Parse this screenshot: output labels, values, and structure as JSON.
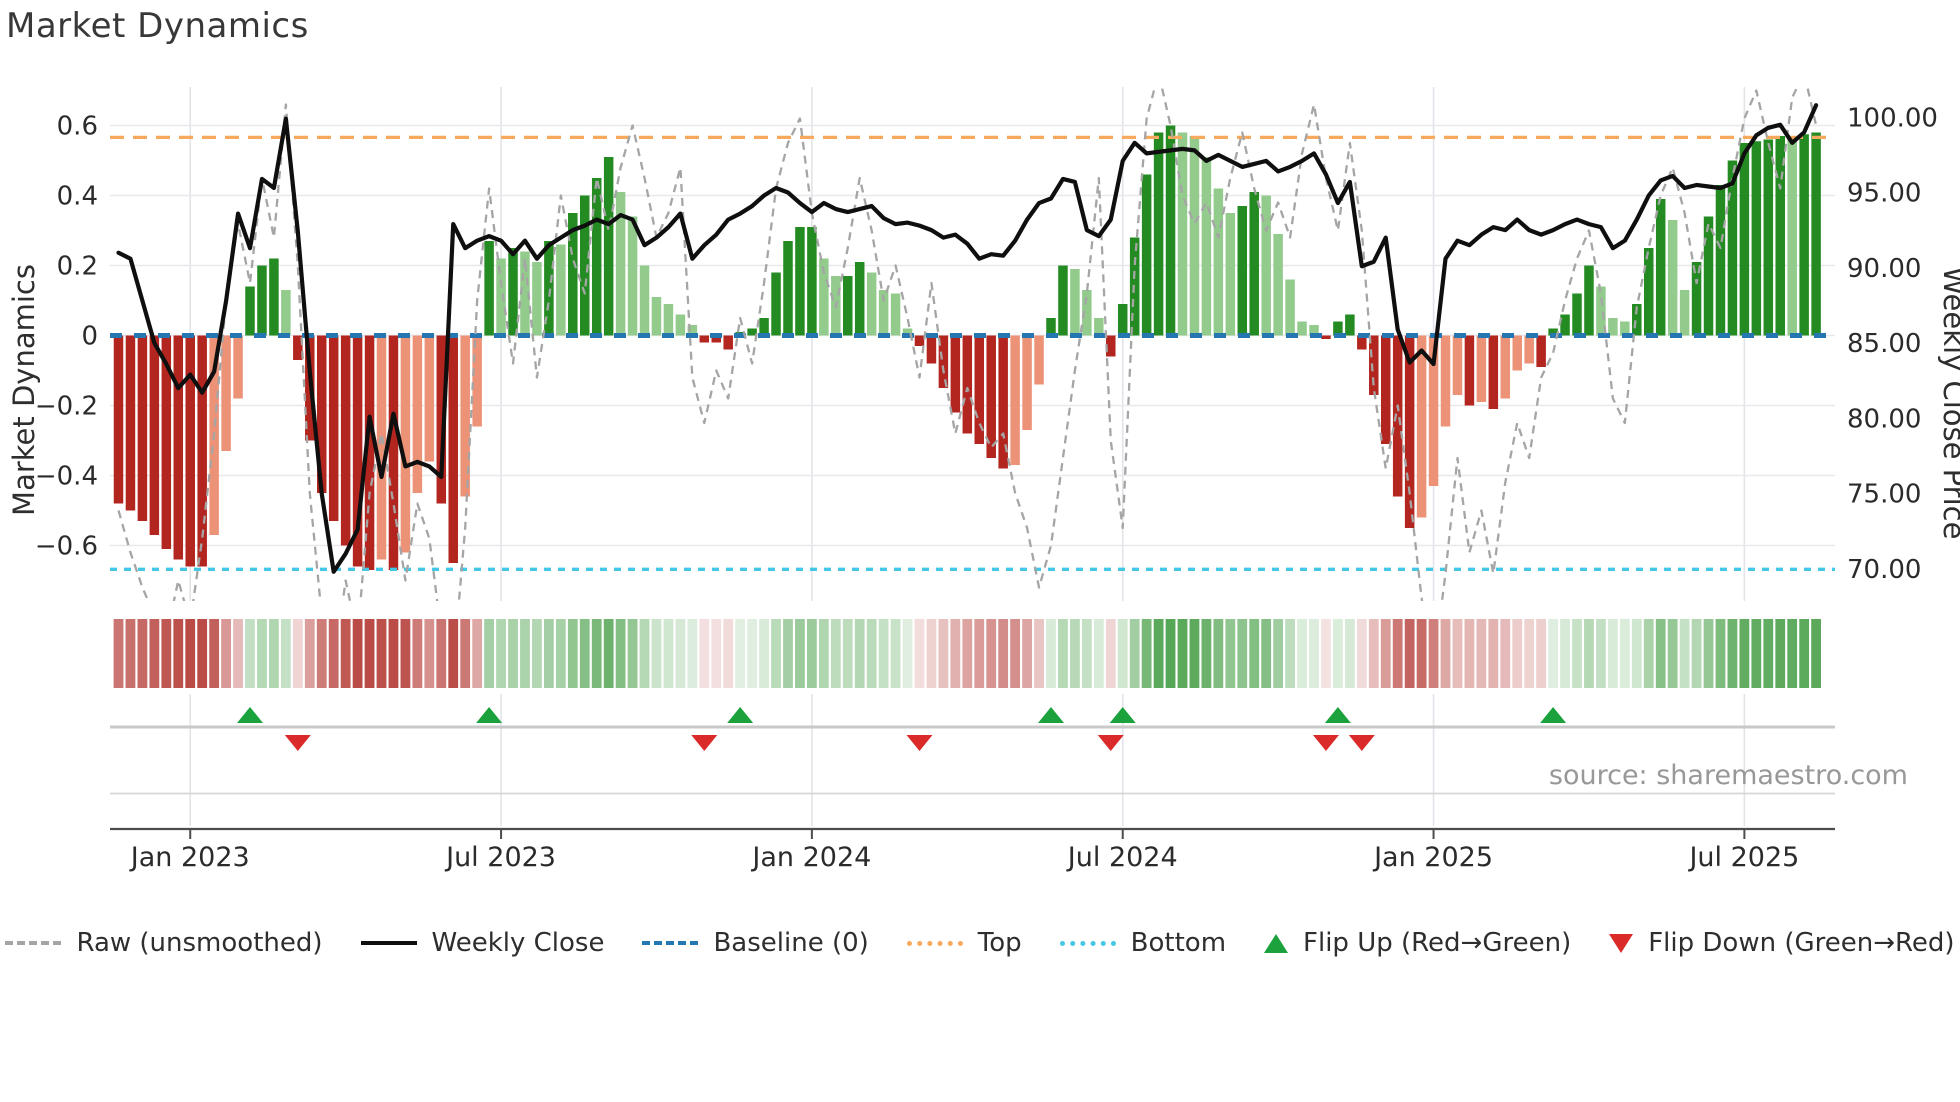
{
  "page": {
    "title": "Market Dynamics",
    "source": "source: sharemaestro.com"
  },
  "chart_data": {
    "type": "bar",
    "title": "Market Dynamics",
    "left_axis": {
      "label": "Market Dynamics",
      "range": [
        -0.76,
        0.71
      ],
      "ticks": [
        {
          "v": 0.6,
          "label": "0.6"
        },
        {
          "v": 0.4,
          "label": "0.4"
        },
        {
          "v": 0.2,
          "label": "0.2"
        },
        {
          "v": 0.0,
          "label": "0"
        },
        {
          "v": -0.2,
          "label": "−0.2"
        },
        {
          "v": -0.4,
          "label": "−0.4"
        },
        {
          "v": -0.6,
          "label": "−0.6"
        }
      ]
    },
    "right_axis": {
      "label": "Weekly Close Price",
      "range": [
        67.9,
        102.1
      ],
      "ticks": [
        {
          "p": 100,
          "label": "100.00"
        },
        {
          "p": 95,
          "label": "95.00"
        },
        {
          "p": 90,
          "label": "90.00"
        },
        {
          "p": 85,
          "label": "85.00"
        },
        {
          "p": 80,
          "label": "80.00"
        },
        {
          "p": 75,
          "label": "75.00"
        },
        {
          "p": 70,
          "label": "70.00"
        }
      ]
    },
    "x_axis": {
      "ticks": [
        {
          "week": 6,
          "label": "Jan 2023"
        },
        {
          "week": 32,
          "label": "Jul 2023"
        },
        {
          "week": 58,
          "label": "Jan 2024"
        },
        {
          "week": 84,
          "label": "Jul 2024"
        },
        {
          "week": 110,
          "label": "Jan 2025"
        },
        {
          "week": 136,
          "label": "Jul 2025"
        }
      ]
    },
    "reference_lines": {
      "baseline": 0,
      "top": 0.566,
      "bottom": -0.668
    },
    "series": {
      "oscillator": [
        -0.48,
        -0.5,
        -0.53,
        -0.57,
        -0.61,
        -0.64,
        -0.66,
        -0.66,
        -0.57,
        -0.33,
        -0.18,
        0.14,
        0.2,
        0.22,
        0.13,
        -0.07,
        -0.3,
        -0.45,
        -0.53,
        -0.6,
        -0.66,
        -0.67,
        -0.64,
        -0.67,
        -0.62,
        -0.45,
        -0.36,
        -0.48,
        -0.65,
        -0.46,
        -0.26,
        0.27,
        0.22,
        0.25,
        0.24,
        0.21,
        0.27,
        0.26,
        0.35,
        0.4,
        0.45,
        0.51,
        0.41,
        0.34,
        0.2,
        0.11,
        0.09,
        0.06,
        0.03,
        -0.02,
        -0.02,
        -0.04,
        0.01,
        0.02,
        0.05,
        0.18,
        0.27,
        0.31,
        0.31,
        0.22,
        0.17,
        0.17,
        0.21,
        0.18,
        0.13,
        0.12,
        0.02,
        -0.03,
        -0.08,
        -0.15,
        -0.22,
        -0.28,
        -0.31,
        -0.35,
        -0.38,
        -0.37,
        -0.27,
        -0.14,
        0.05,
        0.2,
        0.19,
        0.13,
        0.05,
        -0.06,
        0.09,
        0.28,
        0.46,
        0.58,
        0.6,
        0.58,
        0.57,
        0.51,
        0.42,
        0.35,
        0.37,
        0.41,
        0.4,
        0.29,
        0.16,
        0.04,
        0.03,
        -0.01,
        0.04,
        0.06,
        -0.04,
        -0.17,
        -0.31,
        -0.46,
        -0.55,
        -0.52,
        -0.43,
        -0.26,
        -0.17,
        -0.2,
        -0.19,
        -0.21,
        -0.18,
        -0.1,
        -0.08,
        -0.09,
        0.02,
        0.06,
        0.12,
        0.2,
        0.14,
        0.05,
        0.04,
        0.09,
        0.25,
        0.39,
        0.33,
        0.13,
        0.21,
        0.34,
        0.43,
        0.5,
        0.55,
        0.555,
        0.56,
        0.57,
        0.565,
        0.575,
        0.58
      ],
      "weekly_close": [
        91.0,
        90.6,
        87.8,
        85.0,
        83.6,
        82.0,
        82.9,
        81.7,
        83.1,
        87.8,
        93.6,
        91.3,
        95.9,
        95.3,
        99.9,
        92.4,
        83.1,
        75.0,
        69.8,
        71.0,
        72.6,
        80.1,
        76.1,
        80.3,
        76.8,
        77.1,
        76.8,
        76.1,
        92.9,
        91.3,
        91.8,
        92.1,
        91.8,
        90.9,
        91.8,
        90.6,
        91.5,
        92.0,
        92.5,
        92.8,
        93.2,
        92.9,
        93.5,
        93.2,
        91.5,
        92.0,
        92.7,
        93.6,
        90.6,
        91.5,
        92.2,
        93.2,
        93.6,
        94.1,
        94.8,
        95.3,
        95.0,
        94.3,
        93.7,
        94.3,
        93.9,
        93.7,
        93.9,
        94.1,
        93.3,
        92.9,
        93.0,
        92.8,
        92.5,
        92.0,
        92.2,
        91.6,
        90.6,
        90.9,
        90.8,
        91.8,
        93.2,
        94.3,
        94.6,
        95.9,
        95.7,
        92.5,
        92.1,
        93.2,
        97.1,
        98.3,
        97.6,
        97.7,
        97.8,
        97.9,
        97.8,
        97.1,
        97.5,
        97.1,
        96.7,
        96.9,
        97.1,
        96.4,
        96.7,
        97.1,
        97.6,
        96.2,
        94.3,
        95.7,
        90.1,
        90.4,
        92.0,
        85.9,
        83.7,
        84.5,
        83.6,
        90.6,
        91.8,
        91.5,
        92.2,
        92.7,
        92.5,
        93.2,
        92.5,
        92.2,
        92.5,
        92.9,
        93.2,
        92.9,
        92.7,
        91.3,
        91.8,
        93.2,
        94.8,
        95.8,
        96.1,
        95.3,
        95.5,
        95.4,
        95.3,
        95.6,
        97.6,
        98.8,
        99.3,
        99.5,
        98.3,
        99.0,
        100.8
      ],
      "raw": [
        -0.5,
        -0.62,
        -0.72,
        -0.8,
        -0.86,
        -0.7,
        -0.82,
        -0.58,
        -0.28,
        0.1,
        0.32,
        0.15,
        0.45,
        0.28,
        0.66,
        0.2,
        -0.45,
        -0.8,
        -0.95,
        -0.7,
        -0.86,
        -0.45,
        -0.28,
        -0.48,
        -0.7,
        -0.48,
        -0.58,
        -0.85,
        -0.95,
        -0.55,
        0.1,
        0.42,
        0.15,
        -0.08,
        0.22,
        -0.12,
        0.1,
        0.4,
        0.22,
        0.12,
        0.45,
        0.3,
        0.48,
        0.6,
        0.45,
        0.28,
        0.35,
        0.48,
        -0.12,
        -0.25,
        -0.1,
        -0.18,
        0.05,
        -0.08,
        0.15,
        0.42,
        0.55,
        0.62,
        0.35,
        0.18,
        0.08,
        0.25,
        0.45,
        0.3,
        0.1,
        0.2,
        0.05,
        -0.12,
        0.15,
        -0.1,
        -0.28,
        -0.15,
        -0.25,
        -0.32,
        -0.28,
        -0.45,
        -0.55,
        -0.72,
        -0.6,
        -0.35,
        -0.1,
        0.12,
        0.45,
        -0.3,
        -0.55,
        0.2,
        0.62,
        0.75,
        0.6,
        0.4,
        0.32,
        0.38,
        0.28,
        0.45,
        0.58,
        0.42,
        0.3,
        0.38,
        0.28,
        0.52,
        0.66,
        0.45,
        0.3,
        0.55,
        0.3,
        -0.15,
        -0.38,
        -0.2,
        -0.45,
        -0.75,
        -0.95,
        -0.68,
        -0.35,
        -0.62,
        -0.5,
        -0.68,
        -0.42,
        -0.25,
        -0.35,
        -0.12,
        -0.05,
        0.1,
        0.22,
        0.3,
        0.12,
        -0.18,
        -0.25,
        0.08,
        0.25,
        0.4,
        0.48,
        0.35,
        0.15,
        0.32,
        0.25,
        0.45,
        0.62,
        0.7,
        0.55,
        0.42,
        0.68,
        0.75,
        0.6
      ]
    },
    "flip_up_weeks": [
      11,
      31,
      52,
      78,
      84,
      102,
      120
    ],
    "flip_down_weeks": [
      15,
      49,
      67,
      83,
      101,
      104
    ],
    "legend": [
      {
        "type": "dash-gray",
        "label": "Raw (unsmoothed)"
      },
      {
        "type": "solid-black",
        "label": "Weekly Close"
      },
      {
        "type": "dash-blue",
        "label": "Baseline (0)"
      },
      {
        "type": "dot-orange",
        "label": "Top"
      },
      {
        "type": "dot-cyan",
        "label": "Bottom"
      },
      {
        "type": "tri-up",
        "label": "Flip Up (Red→Green)"
      },
      {
        "type": "tri-down",
        "label": "Flip Down (Green→Red)"
      }
    ],
    "colors": {
      "bar_red_dark": "#b3261f",
      "bar_red_light": "#ec9377",
      "bar_green_dark": "#238b21",
      "bar_green_light": "#92cb8c",
      "close_line": "#0f0f0f",
      "raw_line": "#a5a5a5",
      "baseline": "#2577b2",
      "top_line": "#f7a95e",
      "bottom_line": "#44c7e4",
      "flip_up": "#1ca23c",
      "flip_down": "#da2a2a",
      "grid": "#e8e8ee",
      "vgrid": "#e3e3e9",
      "axis_line": "#4d4d4d",
      "panel_line": "#c9c9c9",
      "tick_text": "#2b2b2b",
      "heat_green": "#2d912d",
      "heat_red": "#b0302a"
    }
  }
}
